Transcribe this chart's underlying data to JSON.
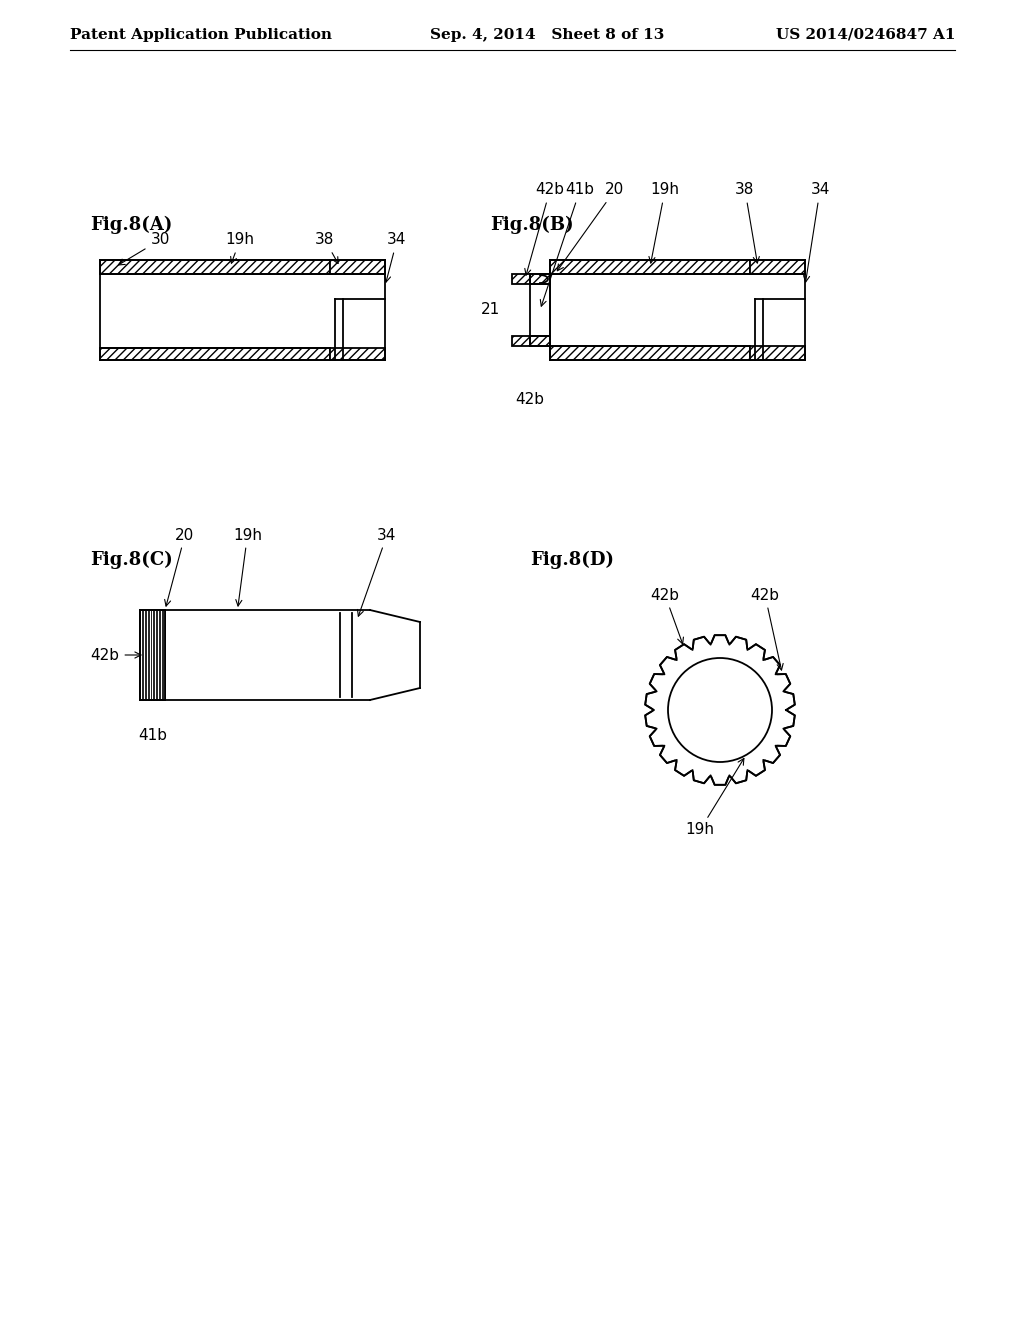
{
  "bg_color": "#ffffff",
  "header_left": "Patent Application Publication",
  "header_mid": "Sep. 4, 2014   Sheet 8 of 13",
  "header_right": "US 2014/0246847 A1",
  "fig_labels": [
    "Fig.8(A)",
    "Fig.8(B)",
    "Fig.8(C)",
    "Fig.8(D)"
  ],
  "line_color": "#000000",
  "font_size_header": 11,
  "font_size_fig": 13,
  "font_size_label": 11
}
